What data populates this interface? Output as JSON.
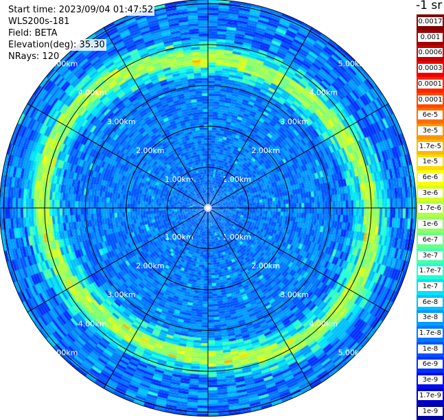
{
  "header": {
    "start_time": "Start time: 2023/09/04 01:47:52",
    "instrument": "WLS200s-181",
    "field": "Field: BETA",
    "elevation": "Elevation(deg): 35.30",
    "nrays": "NRays: 120"
  },
  "colorbar": {
    "title": "-1 sr",
    "labels": [
      "0.0017",
      "0.001",
      "0.0006",
      "0.0003",
      "0.00017",
      "0.0001",
      "6e-5",
      "3e-5",
      "1.7e-5",
      "1e-5",
      "6e-6",
      "3e-6",
      "1.7e-6",
      "1e-6",
      "6e-7",
      "3e-7",
      "1.7e-7",
      "1e-7",
      "6e-8",
      "3e-8",
      "1.7e-8",
      "1e-8",
      "6e-9",
      "3e-9",
      "1.7e-9",
      "1e-9"
    ],
    "colors": [
      "#7f0000",
      "#a00000",
      "#c80000",
      "#ee0000",
      "#ff2400",
      "#ff4800",
      "#ff6c00",
      "#ff9400",
      "#ffb700",
      "#ffdc00",
      "#fbff00",
      "#d6ff1f",
      "#b3ff44",
      "#8eff67",
      "#6bff8a",
      "#48ffad",
      "#22ffd2",
      "#00e4f8",
      "#00c0ff",
      "#009cff",
      "#0078ff",
      "#0054ff",
      "#0030ff",
      "#000ced",
      "#0000c8",
      "#00009f"
    ]
  },
  "chart_data": {
    "type": "heatmap",
    "projection": "polar (PPI scan)",
    "field": "BETA",
    "units": "sr-1",
    "elevation_deg": 35.3,
    "nrays": 120,
    "range_rings": [
      {
        "label": "1.00km",
        "km": 1.0
      },
      {
        "label": "2.00km",
        "km": 2.0
      },
      {
        "label": "3.00km",
        "km": 3.0
      },
      {
        "label": "4.00km",
        "km": 4.0
      },
      {
        "label": "5.00km",
        "km": 5.0
      }
    ],
    "max_range_km": 5.1,
    "azimuth_spokes_deg": [
      0,
      30,
      60,
      90,
      120,
      150,
      180,
      210,
      240,
      270,
      300,
      330
    ],
    "features": [
      {
        "description": "enhanced backscatter ring",
        "range_km": [
          3.4,
          4.3
        ],
        "beta_approx": "6e-6 to 3e-5"
      },
      {
        "description": "background",
        "beta_approx": "1e-8 to 1e-7"
      }
    ]
  }
}
